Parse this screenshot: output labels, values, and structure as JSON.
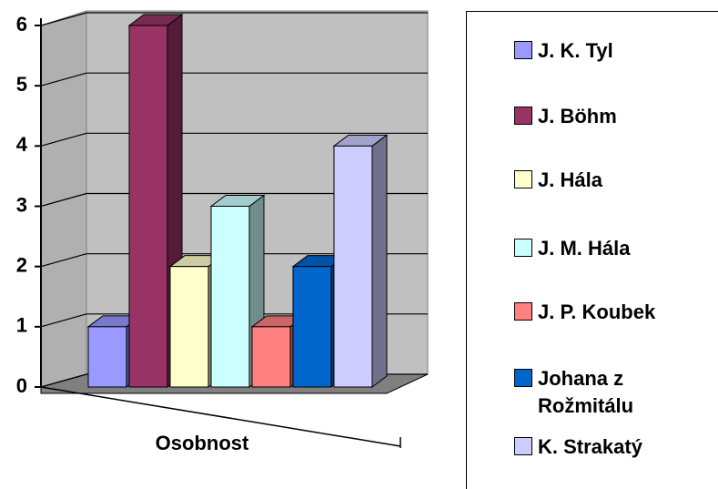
{
  "chart_data": {
    "type": "bar3d",
    "categories": [
      "Osobnost"
    ],
    "series": [
      {
        "name": "J. K. Tyl",
        "color": "#9999ff",
        "values": [
          1
        ]
      },
      {
        "name": "J. Böhm",
        "color": "#993366",
        "values": [
          6
        ]
      },
      {
        "name": "J. Hála",
        "color": "#ffffcc",
        "values": [
          2
        ]
      },
      {
        "name": "J. M. Hála",
        "color": "#ccffff",
        "values": [
          3
        ]
      },
      {
        "name": "J. P. Koubek",
        "color": "#ff8080",
        "values": [
          1
        ]
      },
      {
        "name": "Johana z Rožmitálu",
        "color": "#0066cc",
        "values": [
          2
        ]
      },
      {
        "name": "K. Strakatý",
        "color": "#ccccff",
        "values": [
          4
        ]
      }
    ],
    "ylim": [
      0,
      6
    ],
    "yticks": [
      0,
      1,
      2,
      3,
      4,
      5,
      6
    ],
    "grid": true,
    "legend": "right"
  }
}
